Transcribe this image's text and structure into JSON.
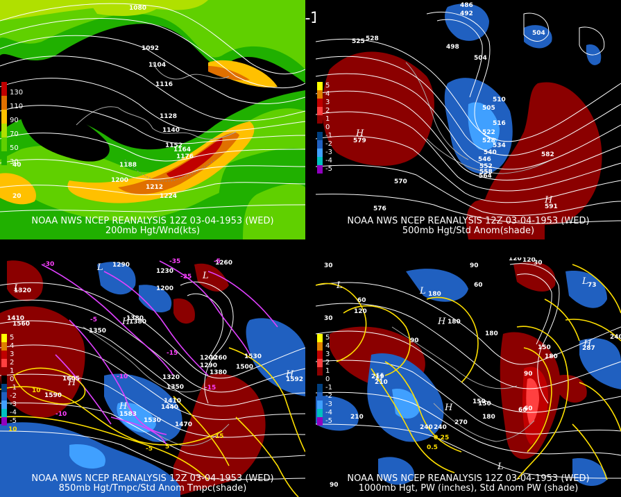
{
  "title": "12Z 03-04-1953 (WED)",
  "panels": {
    "p200": {
      "caption1": "NOAA NWS NCEP REANALYSIS 12Z 03-04-1953 (WED)",
      "caption2": "200mb Hgt/Wnd(kts)",
      "legend": [
        "130",
        "110",
        "90",
        "70",
        "50",
        "30"
      ],
      "legend_colors": [
        "#c00000",
        "#e07000",
        "#ffc000",
        "#b0e000",
        "#60d000",
        "#20b000"
      ],
      "contours": [
        "1080",
        "1092",
        "1104",
        "1116",
        "1128",
        "1140",
        "1152",
        "1164",
        "1176",
        "1188",
        "1200",
        "1212",
        "1224"
      ],
      "minor": [
        "20",
        "40"
      ]
    },
    "p500": {
      "caption1": "NOAA NWS NCEP REANALYSIS 12Z 03-04-1953 (WED)",
      "caption2": "500mb Hgt/Std Anom(shade)",
      "legend": [
        "5",
        "4",
        "3",
        "2",
        "1",
        "0",
        "-1",
        "-2",
        "-3",
        "-4",
        "-5"
      ],
      "contours": [
        "486",
        "492",
        "498",
        "504",
        "510",
        "516",
        "522",
        "528",
        "534",
        "540",
        "546",
        "552",
        "558",
        "564",
        "570",
        "576",
        "582",
        "505",
        "591",
        "579",
        "504",
        "528",
        "525"
      ],
      "highs": [
        "H",
        "H"
      ]
    },
    "p850": {
      "caption1": "NOAA NWS NCEP REANALYSIS 12Z 03-04-1953 (WED)",
      "caption2": "850mb Hgt/Tmpc/Std Anom Tmpc(shade)",
      "legend": [
        "5",
        "4",
        "3",
        "2",
        "1",
        "0",
        "-1",
        "-2",
        "-3",
        "-4",
        "-5"
      ],
      "contours": [
        "1410",
        "1290",
        "1230",
        "1200",
        "1260",
        "1320",
        "1380",
        "1350",
        "1560",
        "1590",
        "1605",
        "1200",
        "1260",
        "1290",
        "1380",
        "1500",
        "1530",
        "1592",
        "1350",
        "1410",
        "1440",
        "1470",
        "1530",
        "1583",
        "1320",
        "1380"
      ],
      "temps": [
        "-30",
        "-35",
        "-5",
        "-25",
        "-15",
        "-10",
        "-5",
        "-10",
        "-15",
        "-5",
        "5",
        "15",
        "10",
        "10"
      ]
    },
    "p1000": {
      "caption1": "NOAA NWS NCEP REANALYSIS 12Z 03-04-1953 (WED)",
      "caption2": "1000mb Hgt, PW (inches), Std Anom PW (shade)",
      "legend": [
        "5",
        "4",
        "3",
        "2",
        "1",
        "0",
        "-1",
        "-2",
        "-3",
        "-4",
        "-5"
      ],
      "contours": [
        "30",
        "90",
        "120",
        "120",
        "150",
        "180",
        "210",
        "240",
        "270",
        "60",
        "60",
        "90",
        "180",
        "30",
        "210",
        "240",
        "150",
        "180",
        "60",
        "90",
        "120",
        "30",
        "73",
        "287",
        "240",
        "180",
        "150",
        "60",
        "219",
        "0.25",
        "0.5",
        "90",
        "180"
      ],
      "pw": [
        "0.25",
        "0.5"
      ]
    }
  },
  "anom_colors": {
    "5": "#ffff00",
    "4": "#e08000",
    "3": "#c00000",
    "2": "#ff4040",
    "1": "#8b0000",
    "0": "#000000",
    "-1": "#003f7f",
    "-2": "#2060c0",
    "-3": "#40a0ff",
    "-4": "#00c0c0",
    "-5": "#9000c0"
  }
}
